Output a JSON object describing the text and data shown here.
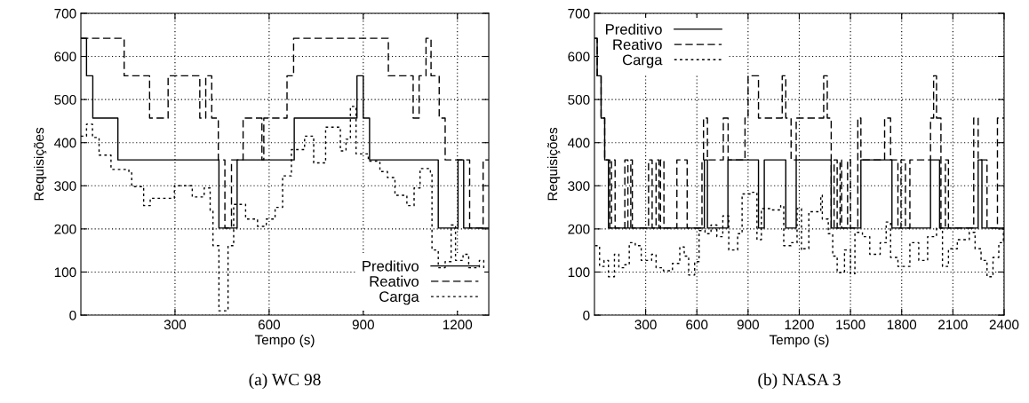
{
  "chart_data": [
    {
      "type": "step",
      "subtitle": "(a) WC 98",
      "xlabel": "Tempo (s)",
      "ylabel": "Requisições",
      "xlim": [
        0,
        1300
      ],
      "xticks": [
        300,
        600,
        900,
        1200
      ],
      "ylim": [
        0,
        700
      ],
      "yticks": [
        0,
        100,
        200,
        300,
        400,
        500,
        600,
        700
      ],
      "grid": true,
      "legend": "bottom right",
      "series": [
        {
          "name": "Preditivo",
          "color": "#000000",
          "line_style": "solid",
          "x": [
            0,
            18,
            38,
            118,
            440,
            498,
            680,
            880,
            900,
            920,
            1139,
            1202,
            1220,
            1300
          ],
          "values": [
            642,
            555,
            457,
            360,
            202,
            360,
            457,
            555,
            457,
            360,
            202,
            360,
            202,
            202
          ]
        },
        {
          "name": "Reativo",
          "color": "#000000",
          "line_style": "dashed",
          "x": [
            0,
            138,
            219,
            278,
            379,
            398,
            417,
            438,
            459,
            480,
            517,
            577,
            583,
            657,
            678,
            980,
            1059,
            1078,
            1100,
            1116,
            1142,
            1161,
            1239,
            1282,
            1300
          ],
          "values": [
            642,
            555,
            457,
            555,
            457,
            555,
            457,
            360,
            202,
            360,
            457,
            360,
            457,
            555,
            642,
            555,
            457,
            555,
            642,
            555,
            457,
            360,
            202,
            360,
            360
          ]
        },
        {
          "name": "Carga",
          "color": "#000000",
          "line_style": "dotted",
          "x": [
            0,
            18,
            37,
            58,
            96,
            153,
            162,
            200,
            221,
            298,
            355,
            393,
            412,
            421,
            440,
            459,
            469,
            487,
            525,
            563,
            591,
            619,
            643,
            671,
            713,
            742,
            780,
            827,
            845,
            859,
            877,
            916,
            953,
            977,
            1001,
            1039,
            1062,
            1081,
            1114,
            1119,
            1139,
            1161,
            1180,
            1194,
            1218,
            1236,
            1270,
            1284
          ],
          "values": [
            415,
            443,
            412,
            371,
            338,
            330,
            298,
            254,
            271,
            300,
            274,
            295,
            243,
            161,
            10,
            10,
            161,
            257,
            223,
            206,
            223,
            250,
            323,
            384,
            415,
            353,
            436,
            381,
            408,
            484,
            374,
            357,
            333,
            319,
            278,
            254,
            295,
            340,
            326,
            151,
            110,
            124,
            209,
            127,
            141,
            110,
            127,
            106
          ]
        }
      ]
    },
    {
      "type": "step",
      "subtitle": "(b) NASA 3",
      "xlabel": "Tempo (s)",
      "ylabel": "Requisições",
      "xlim": [
        0,
        2400
      ],
      "xticks": [
        300,
        600,
        900,
        1200,
        1500,
        1800,
        2100,
        2400
      ],
      "ylim": [
        0,
        700
      ],
      "yticks": [
        0,
        100,
        200,
        300,
        400,
        500,
        600,
        700
      ],
      "grid": true,
      "legend": "top left",
      "series": [
        {
          "name": "Preditivo",
          "color": "#000000",
          "line_style": "solid",
          "x": [
            0,
            16,
            39,
            60,
            82,
            644,
            662,
            782,
            961,
            995,
            1121,
            1182,
            1387,
            1561,
            1743,
            1969,
            2022,
            2248,
            2270,
            2400
          ],
          "values": [
            642,
            555,
            457,
            360,
            202,
            360,
            202,
            360,
            202,
            360,
            202,
            360,
            202,
            360,
            202,
            360,
            202,
            360,
            202,
            202
          ]
        },
        {
          "name": "Reativo",
          "color": "#000000",
          "line_style": "dashed",
          "x": [
            0,
            16,
            39,
            60,
            90,
            100,
            121,
            178,
            196,
            213,
            222,
            317,
            338,
            361,
            378,
            387,
            407,
            483,
            543,
            630,
            639,
            662,
            755,
            783,
            882,
            900,
            961,
            1100,
            1121,
            1152,
            1182,
            1343,
            1364,
            1387,
            1404,
            1422,
            1439,
            1448,
            1483,
            1500,
            1543,
            1561,
            1700,
            1735,
            1778,
            1796,
            1822,
            1848,
            1969,
            1987,
            2004,
            2030,
            2056,
            2074,
            2222,
            2248,
            2300,
            2361,
            2400
          ],
          "values": [
            642,
            555,
            457,
            360,
            202,
            360,
            202,
            360,
            202,
            360,
            202,
            360,
            202,
            360,
            202,
            360,
            202,
            360,
            202,
            360,
            457,
            360,
            457,
            360,
            457,
            555,
            457,
            555,
            457,
            360,
            457,
            555,
            457,
            202,
            360,
            202,
            360,
            202,
            360,
            202,
            457,
            360,
            457,
            360,
            202,
            360,
            202,
            360,
            457,
            555,
            457,
            202,
            360,
            202,
            457,
            360,
            202,
            457,
            457
          ]
        },
        {
          "name": "Carga",
          "color": "#000000",
          "line_style": "dotted",
          "x": [
            4,
            30,
            56,
            82,
            117,
            143,
            178,
            204,
            239,
            274,
            335,
            361,
            404,
            457,
            500,
            526,
            552,
            587,
            613,
            648,
            683,
            717,
            752,
            787,
            839,
            865,
            926,
            952,
            978,
            1030,
            1091,
            1109,
            1152,
            1187,
            1213,
            1222,
            1256,
            1326,
            1335,
            1370,
            1396,
            1422,
            1465,
            1500,
            1526,
            1570,
            1613,
            1674,
            1709,
            1735,
            1778,
            1848,
            1900,
            1952,
            2004,
            2039,
            2074,
            2126,
            2196,
            2230,
            2265,
            2300,
            2335,
            2369,
            2396
          ],
          "values": [
            161,
            113,
            127,
            89,
            141,
            110,
            117,
            168,
            161,
            127,
            141,
            110,
            103,
            120,
            158,
            137,
            93,
            124,
            196,
            189,
            209,
            182,
            230,
            151,
            189,
            281,
            285,
            175,
            247,
            244,
            254,
            161,
            168,
            247,
            151,
            154,
            240,
            278,
            223,
            189,
            137,
            99,
            151,
            96,
            192,
            182,
            141,
            168,
            216,
            134,
            113,
            168,
            127,
            182,
            202,
            113,
            154,
            175,
            192,
            154,
            127,
            89,
            134,
            168,
            209
          ]
        }
      ]
    }
  ]
}
